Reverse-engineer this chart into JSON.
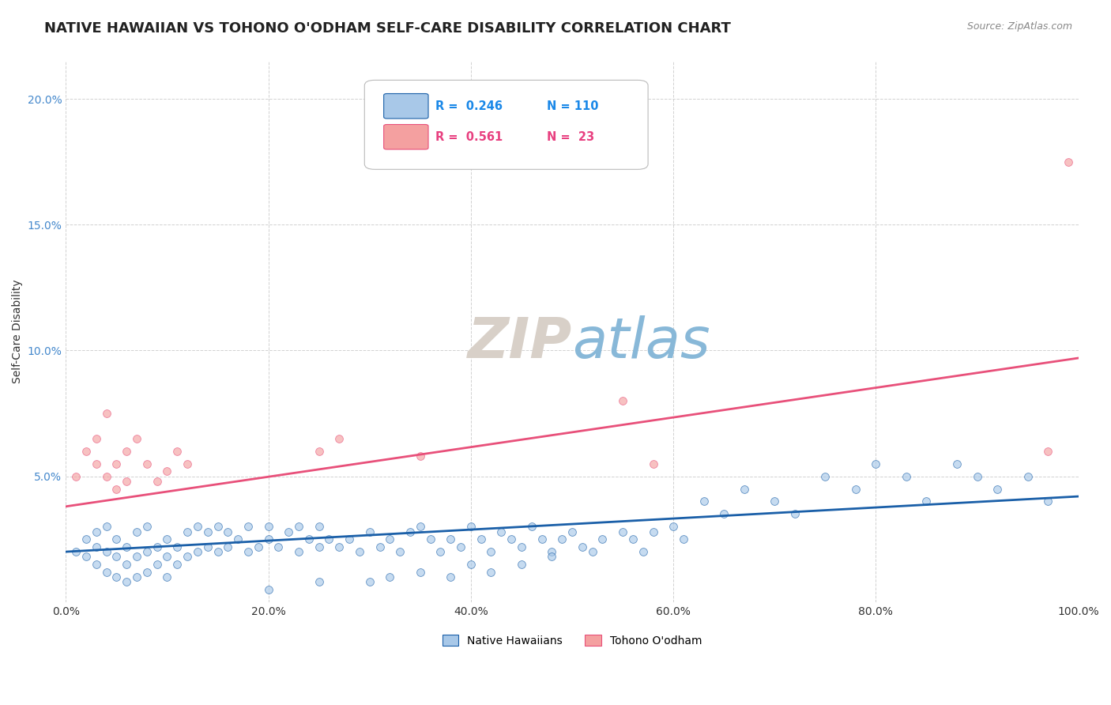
{
  "title": "NATIVE HAWAIIAN VS TOHONO O'ODHAM SELF-CARE DISABILITY CORRELATION CHART",
  "source": "Source: ZipAtlas.com",
  "ylabel": "Self-Care Disability",
  "xlabel": "",
  "watermark_zip": "ZIP",
  "watermark_atlas": "atlas",
  "legend_blue_r": "0.246",
  "legend_blue_n": "110",
  "legend_pink_r": "0.561",
  "legend_pink_n": "23",
  "legend_label_blue": "Native Hawaiians",
  "legend_label_pink": "Tohono O'odham",
  "blue_color": "#a8c8e8",
  "pink_color": "#f4a0a0",
  "line_blue_color": "#1a5fa8",
  "line_pink_color": "#e8507a",
  "legend_blue_r_color": "#1a88e8",
  "legend_pink_r_color": "#e84080",
  "xlim": [
    0.0,
    1.0
  ],
  "ylim": [
    0.0,
    0.215
  ],
  "xtick_labels": [
    "0.0%",
    "20.0%",
    "40.0%",
    "60.0%",
    "80.0%",
    "100.0%"
  ],
  "ytick_labels": [
    "",
    "5.0%",
    "10.0%",
    "15.0%",
    "20.0%"
  ],
  "ytick_vals": [
    0.0,
    0.05,
    0.1,
    0.15,
    0.2
  ],
  "xtick_vals": [
    0.0,
    0.2,
    0.4,
    0.6,
    0.8,
    1.0
  ],
  "blue_x": [
    0.01,
    0.02,
    0.02,
    0.03,
    0.03,
    0.03,
    0.04,
    0.04,
    0.04,
    0.05,
    0.05,
    0.05,
    0.06,
    0.06,
    0.06,
    0.07,
    0.07,
    0.07,
    0.08,
    0.08,
    0.08,
    0.09,
    0.09,
    0.1,
    0.1,
    0.1,
    0.11,
    0.11,
    0.12,
    0.12,
    0.13,
    0.13,
    0.14,
    0.14,
    0.15,
    0.15,
    0.16,
    0.16,
    0.17,
    0.18,
    0.18,
    0.19,
    0.2,
    0.2,
    0.21,
    0.22,
    0.23,
    0.23,
    0.24,
    0.25,
    0.25,
    0.26,
    0.27,
    0.28,
    0.29,
    0.3,
    0.31,
    0.32,
    0.33,
    0.34,
    0.35,
    0.36,
    0.37,
    0.38,
    0.39,
    0.4,
    0.41,
    0.42,
    0.43,
    0.44,
    0.45,
    0.46,
    0.47,
    0.48,
    0.49,
    0.5,
    0.51,
    0.52,
    0.53,
    0.55,
    0.56,
    0.57,
    0.58,
    0.6,
    0.61,
    0.63,
    0.65,
    0.67,
    0.7,
    0.72,
    0.75,
    0.78,
    0.8,
    0.83,
    0.85,
    0.88,
    0.9,
    0.92,
    0.95,
    0.97,
    0.2,
    0.25,
    0.3,
    0.32,
    0.35,
    0.38,
    0.4,
    0.42,
    0.45,
    0.48
  ],
  "blue_y": [
    0.02,
    0.018,
    0.025,
    0.015,
    0.022,
    0.028,
    0.012,
    0.02,
    0.03,
    0.01,
    0.018,
    0.025,
    0.008,
    0.015,
    0.022,
    0.01,
    0.018,
    0.028,
    0.012,
    0.02,
    0.03,
    0.015,
    0.022,
    0.01,
    0.018,
    0.025,
    0.015,
    0.022,
    0.018,
    0.028,
    0.02,
    0.03,
    0.022,
    0.028,
    0.02,
    0.03,
    0.022,
    0.028,
    0.025,
    0.02,
    0.03,
    0.022,
    0.025,
    0.03,
    0.022,
    0.028,
    0.02,
    0.03,
    0.025,
    0.022,
    0.03,
    0.025,
    0.022,
    0.025,
    0.02,
    0.028,
    0.022,
    0.025,
    0.02,
    0.028,
    0.03,
    0.025,
    0.02,
    0.025,
    0.022,
    0.03,
    0.025,
    0.02,
    0.028,
    0.025,
    0.022,
    0.03,
    0.025,
    0.02,
    0.025,
    0.028,
    0.022,
    0.02,
    0.025,
    0.028,
    0.025,
    0.02,
    0.028,
    0.03,
    0.025,
    0.04,
    0.035,
    0.045,
    0.04,
    0.035,
    0.05,
    0.045,
    0.055,
    0.05,
    0.04,
    0.055,
    0.05,
    0.045,
    0.05,
    0.04,
    0.005,
    0.008,
    0.008,
    0.01,
    0.012,
    0.01,
    0.015,
    0.012,
    0.015,
    0.018
  ],
  "pink_x": [
    0.01,
    0.02,
    0.03,
    0.03,
    0.04,
    0.04,
    0.05,
    0.05,
    0.06,
    0.06,
    0.07,
    0.08,
    0.09,
    0.1,
    0.11,
    0.12,
    0.25,
    0.27,
    0.35,
    0.55,
    0.58,
    0.97,
    0.99
  ],
  "pink_y": [
    0.05,
    0.06,
    0.055,
    0.065,
    0.05,
    0.075,
    0.045,
    0.055,
    0.048,
    0.06,
    0.065,
    0.055,
    0.048,
    0.052,
    0.06,
    0.055,
    0.06,
    0.065,
    0.058,
    0.08,
    0.055,
    0.06,
    0.175
  ],
  "blue_line_x": [
    0.0,
    1.0
  ],
  "blue_line_y": [
    0.02,
    0.042
  ],
  "pink_line_x": [
    0.0,
    1.0
  ],
  "pink_line_y": [
    0.038,
    0.097
  ],
  "background_color": "#ffffff",
  "grid_color": "#cccccc",
  "title_fontsize": 13,
  "axis_label_fontsize": 10,
  "tick_fontsize": 10,
  "watermark_fontsize_zip": 52,
  "watermark_fontsize_atlas": 52,
  "watermark_color_zip": "#d8d0c8",
  "watermark_color_atlas": "#88b8d8",
  "dot_size": 50,
  "dot_alpha": 0.65
}
